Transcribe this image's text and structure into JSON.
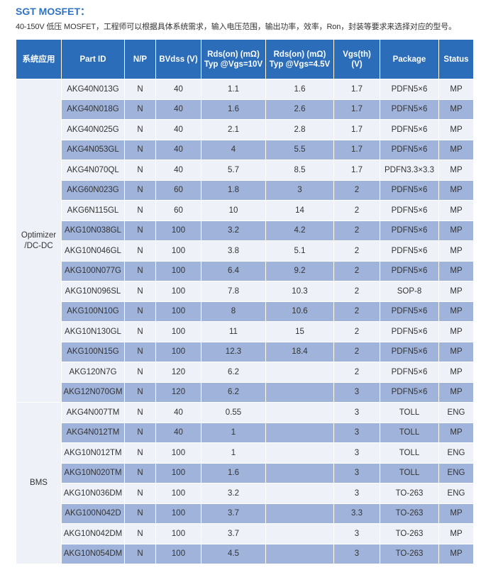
{
  "title": "SGT MOSFET：",
  "description": "40-150V 低压 MOSFET，工程师可以根据具体系统需求，输入电压范围，输出功率，效率，Ron，封装等要求来选择对应的型号。",
  "colors": {
    "header": "#2b6db8",
    "row_dark": "#a0b4db",
    "row_light": "#eef1f8",
    "title": "#2f73c4"
  },
  "headers": [
    "系统应用",
    "Part ID",
    "N/P",
    "BVdss (V)",
    "Rds(on) (mΩ)\nTyp @Vgs=10V",
    "Rds(on) (mΩ)\nTyp @Vgs=4.5V",
    "Vgs(th)\n(V)",
    "Package",
    "Status"
  ],
  "groups": [
    {
      "name": "Optimizer\n/DC-DC",
      "rows": [
        [
          "AKG40N013G",
          "N",
          "40",
          "1.1",
          "1.6",
          "1.7",
          "PDFN5×6",
          "MP"
        ],
        [
          "AKG40N018G",
          "N",
          "40",
          "1.6",
          "2.6",
          "1.7",
          "PDFN5×6",
          "MP"
        ],
        [
          "AKG40N025G",
          "N",
          "40",
          "2.1",
          "2.8",
          "1.7",
          "PDFN5×6",
          "MP"
        ],
        [
          "AKG4N053GL",
          "N",
          "40",
          "4",
          "5.5",
          "1.7",
          "PDFN5×6",
          "MP"
        ],
        [
          "AKG4N070QL",
          "N",
          "40",
          "5.7",
          "8.5",
          "1.7",
          "PDFN3.3×3.3",
          "MP"
        ],
        [
          "AKG60N023G",
          "N",
          "60",
          "1.8",
          "3",
          "2",
          "PDFN5×6",
          "MP"
        ],
        [
          "AKG6N115GL",
          "N",
          "60",
          "10",
          "14",
          "2",
          "PDFN5×6",
          "MP"
        ],
        [
          "AKG10N038GL",
          "N",
          "100",
          "3.2",
          "4.2",
          "2",
          "PDFN5×6",
          "MP"
        ],
        [
          "AKG10N046GL",
          "N",
          "100",
          "3.8",
          "5.1",
          "2",
          "PDFN5×6",
          "MP"
        ],
        [
          "AKG100N077G",
          "N",
          "100",
          "6.4",
          "9.2",
          "2",
          "PDFN5×6",
          "MP"
        ],
        [
          "AKG10N096SL",
          "N",
          "100",
          "7.8",
          "10.3",
          "2",
          "SOP-8",
          "MP"
        ],
        [
          "AKG100N10G",
          "N",
          "100",
          "8",
          "10.6",
          "2",
          "PDFN5×6",
          "MP"
        ],
        [
          "AKG10N130GL",
          "N",
          "100",
          "11",
          "15",
          "2",
          "PDFN5×6",
          "MP"
        ],
        [
          "AKG100N15G",
          "N",
          "100",
          "12.3",
          "18.4",
          "2",
          "PDFN5×6",
          "MP"
        ],
        [
          "AKG120N7G",
          "N",
          "120",
          "6.2",
          "",
          "2",
          "PDFN5×6",
          "MP"
        ],
        [
          "AKG12N070GM",
          "N",
          "120",
          "6.2",
          "",
          "3",
          "PDFN5×6",
          "MP"
        ]
      ]
    },
    {
      "name": "BMS",
      "rows": [
        [
          "AKG4N007TM",
          "N",
          "40",
          "0.55",
          "",
          "3",
          "TOLL",
          "ENG"
        ],
        [
          "AKG4N012TM",
          "N",
          "40",
          "1",
          "",
          "3",
          "TOLL",
          "MP"
        ],
        [
          "AKG10N012TM",
          "N",
          "100",
          "1",
          "",
          "3",
          "TOLL",
          "ENG"
        ],
        [
          "AKG10N020TM",
          "N",
          "100",
          "1.6",
          "",
          "3",
          "TOLL",
          "ENG"
        ],
        [
          "AKG10N036DM",
          "N",
          "100",
          "3.2",
          "",
          "3",
          "TO-263",
          "ENG"
        ],
        [
          "AKG100N042D",
          "N",
          "100",
          "3.7",
          "",
          "3.3",
          "TO-263",
          "MP"
        ],
        [
          "AKG10N042DM",
          "N",
          "100",
          "3.7",
          "",
          "3",
          "TO-263",
          "MP"
        ],
        [
          "AKG10N054DM",
          "N",
          "100",
          "4.5",
          "",
          "3",
          "TO-263",
          "MP"
        ]
      ]
    }
  ]
}
